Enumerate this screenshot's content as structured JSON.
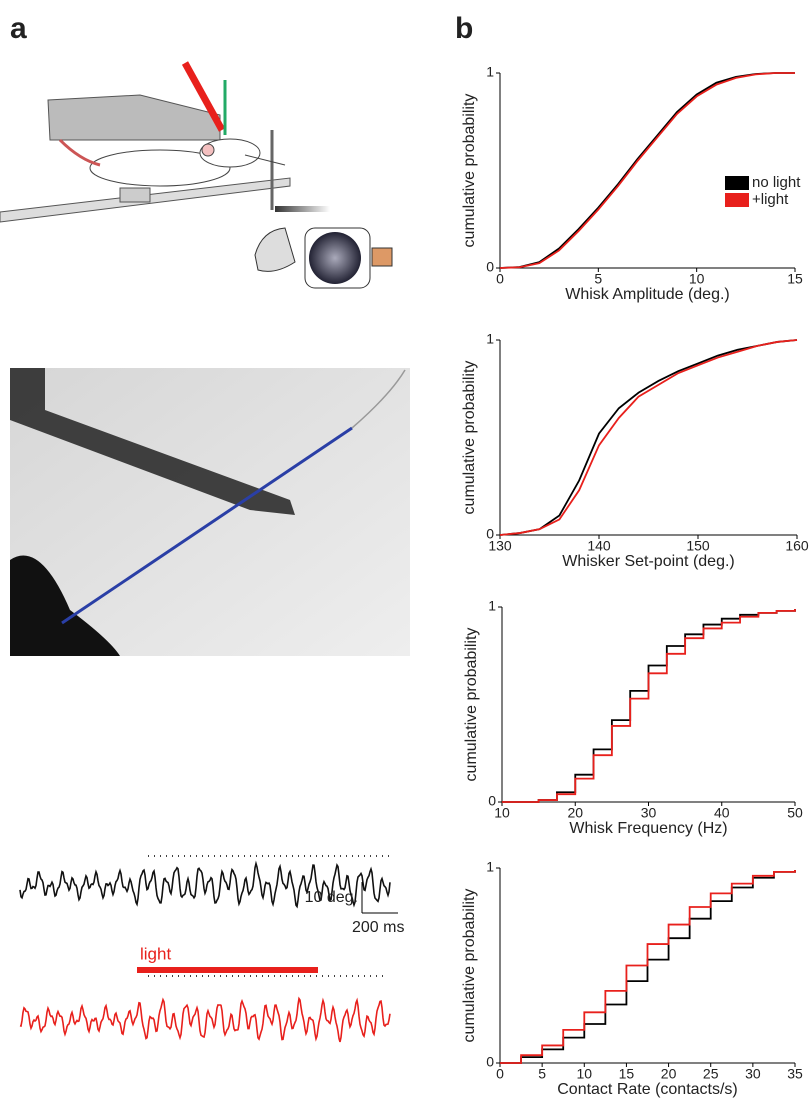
{
  "panels": {
    "a": "a",
    "b": "b"
  },
  "annotations": {
    "light": "light",
    "scale_y": "10 deg.",
    "scale_x": "200 ms"
  },
  "chart_data": [
    {
      "type": "line",
      "x_label": "Whisk Amplitude (deg.)",
      "y_label": "cumulative probability",
      "x": [
        0,
        1,
        2,
        3,
        4,
        5,
        6,
        7,
        8,
        9,
        10,
        11,
        12,
        13,
        14,
        15
      ],
      "series": [
        {
          "name": "no light",
          "color": "#000000",
          "values": [
            0,
            0.005,
            0.03,
            0.1,
            0.2,
            0.31,
            0.43,
            0.56,
            0.68,
            0.8,
            0.89,
            0.95,
            0.98,
            0.995,
            1,
            1
          ]
        },
        {
          "name": "+light",
          "color": "#e8201c",
          "values": [
            0,
            0.004,
            0.025,
            0.09,
            0.19,
            0.3,
            0.42,
            0.55,
            0.67,
            0.79,
            0.88,
            0.94,
            0.975,
            0.993,
            1,
            1
          ]
        }
      ],
      "xlim": [
        0,
        15
      ],
      "xticks": [
        0,
        5,
        10,
        15
      ],
      "ylim": [
        0,
        1
      ],
      "yticks": [
        0,
        1
      ],
      "legend": "right"
    },
    {
      "type": "line",
      "x_label": "Whisker Set-point (deg.)",
      "y_label": "cumulative probability",
      "x": [
        130,
        132,
        134,
        136,
        138,
        140,
        142,
        144,
        146,
        148,
        150,
        152,
        154,
        156,
        158,
        160
      ],
      "series": [
        {
          "name": "no light",
          "color": "#000000",
          "values": [
            0,
            0.01,
            0.03,
            0.1,
            0.28,
            0.52,
            0.65,
            0.73,
            0.79,
            0.84,
            0.88,
            0.92,
            0.95,
            0.97,
            0.99,
            1
          ]
        },
        {
          "name": "+light",
          "color": "#e8201c",
          "values": [
            0,
            0.01,
            0.03,
            0.08,
            0.23,
            0.46,
            0.6,
            0.71,
            0.77,
            0.83,
            0.87,
            0.91,
            0.94,
            0.97,
            0.99,
            1
          ]
        }
      ],
      "xlim": [
        130,
        160
      ],
      "xticks": [
        130,
        140,
        150,
        160
      ],
      "ylim": [
        0,
        1
      ],
      "yticks": [
        0,
        1
      ]
    },
    {
      "type": "step",
      "x_label": "Whisk Frequency (Hz)",
      "y_label": "cumulative probability",
      "x": [
        10,
        12.5,
        15,
        17.5,
        20,
        22.5,
        25,
        27.5,
        30,
        32.5,
        35,
        37.5,
        40,
        42.5,
        45,
        47.5,
        50
      ],
      "series": [
        {
          "name": "no light",
          "color": "#000000",
          "values": [
            0,
            0,
            0.01,
            0.05,
            0.14,
            0.27,
            0.42,
            0.57,
            0.7,
            0.8,
            0.86,
            0.91,
            0.94,
            0.96,
            0.97,
            0.98,
            0.99
          ]
        },
        {
          "name": "+light",
          "color": "#e8201c",
          "values": [
            0,
            0,
            0.01,
            0.04,
            0.12,
            0.24,
            0.39,
            0.53,
            0.66,
            0.76,
            0.84,
            0.89,
            0.92,
            0.95,
            0.97,
            0.98,
            0.99
          ]
        }
      ],
      "xlim": [
        10,
        50
      ],
      "xticks": [
        10,
        20,
        30,
        40,
        50
      ],
      "ylim": [
        0,
        1
      ],
      "yticks": [
        0,
        1
      ]
    },
    {
      "type": "step",
      "x_label": "Contact Rate (contacts/s)",
      "y_label": "cumulative probability",
      "x": [
        0,
        2.5,
        5,
        7.5,
        10,
        12.5,
        15,
        17.5,
        20,
        22.5,
        25,
        27.5,
        30,
        32.5,
        35
      ],
      "series": [
        {
          "name": "no light",
          "color": "#000000",
          "values": [
            0,
            0.03,
            0.07,
            0.13,
            0.2,
            0.3,
            0.42,
            0.53,
            0.64,
            0.74,
            0.83,
            0.9,
            0.95,
            0.98,
            0.99
          ]
        },
        {
          "name": "+light",
          "color": "#e8201c",
          "values": [
            0,
            0.04,
            0.09,
            0.17,
            0.26,
            0.37,
            0.5,
            0.61,
            0.71,
            0.8,
            0.87,
            0.92,
            0.96,
            0.98,
            0.99
          ]
        }
      ],
      "xlim": [
        0,
        35
      ],
      "xticks": [
        0,
        5,
        10,
        15,
        20,
        25,
        30,
        35
      ],
      "ylim": [
        0,
        1
      ],
      "yticks": [
        0,
        1
      ]
    }
  ]
}
